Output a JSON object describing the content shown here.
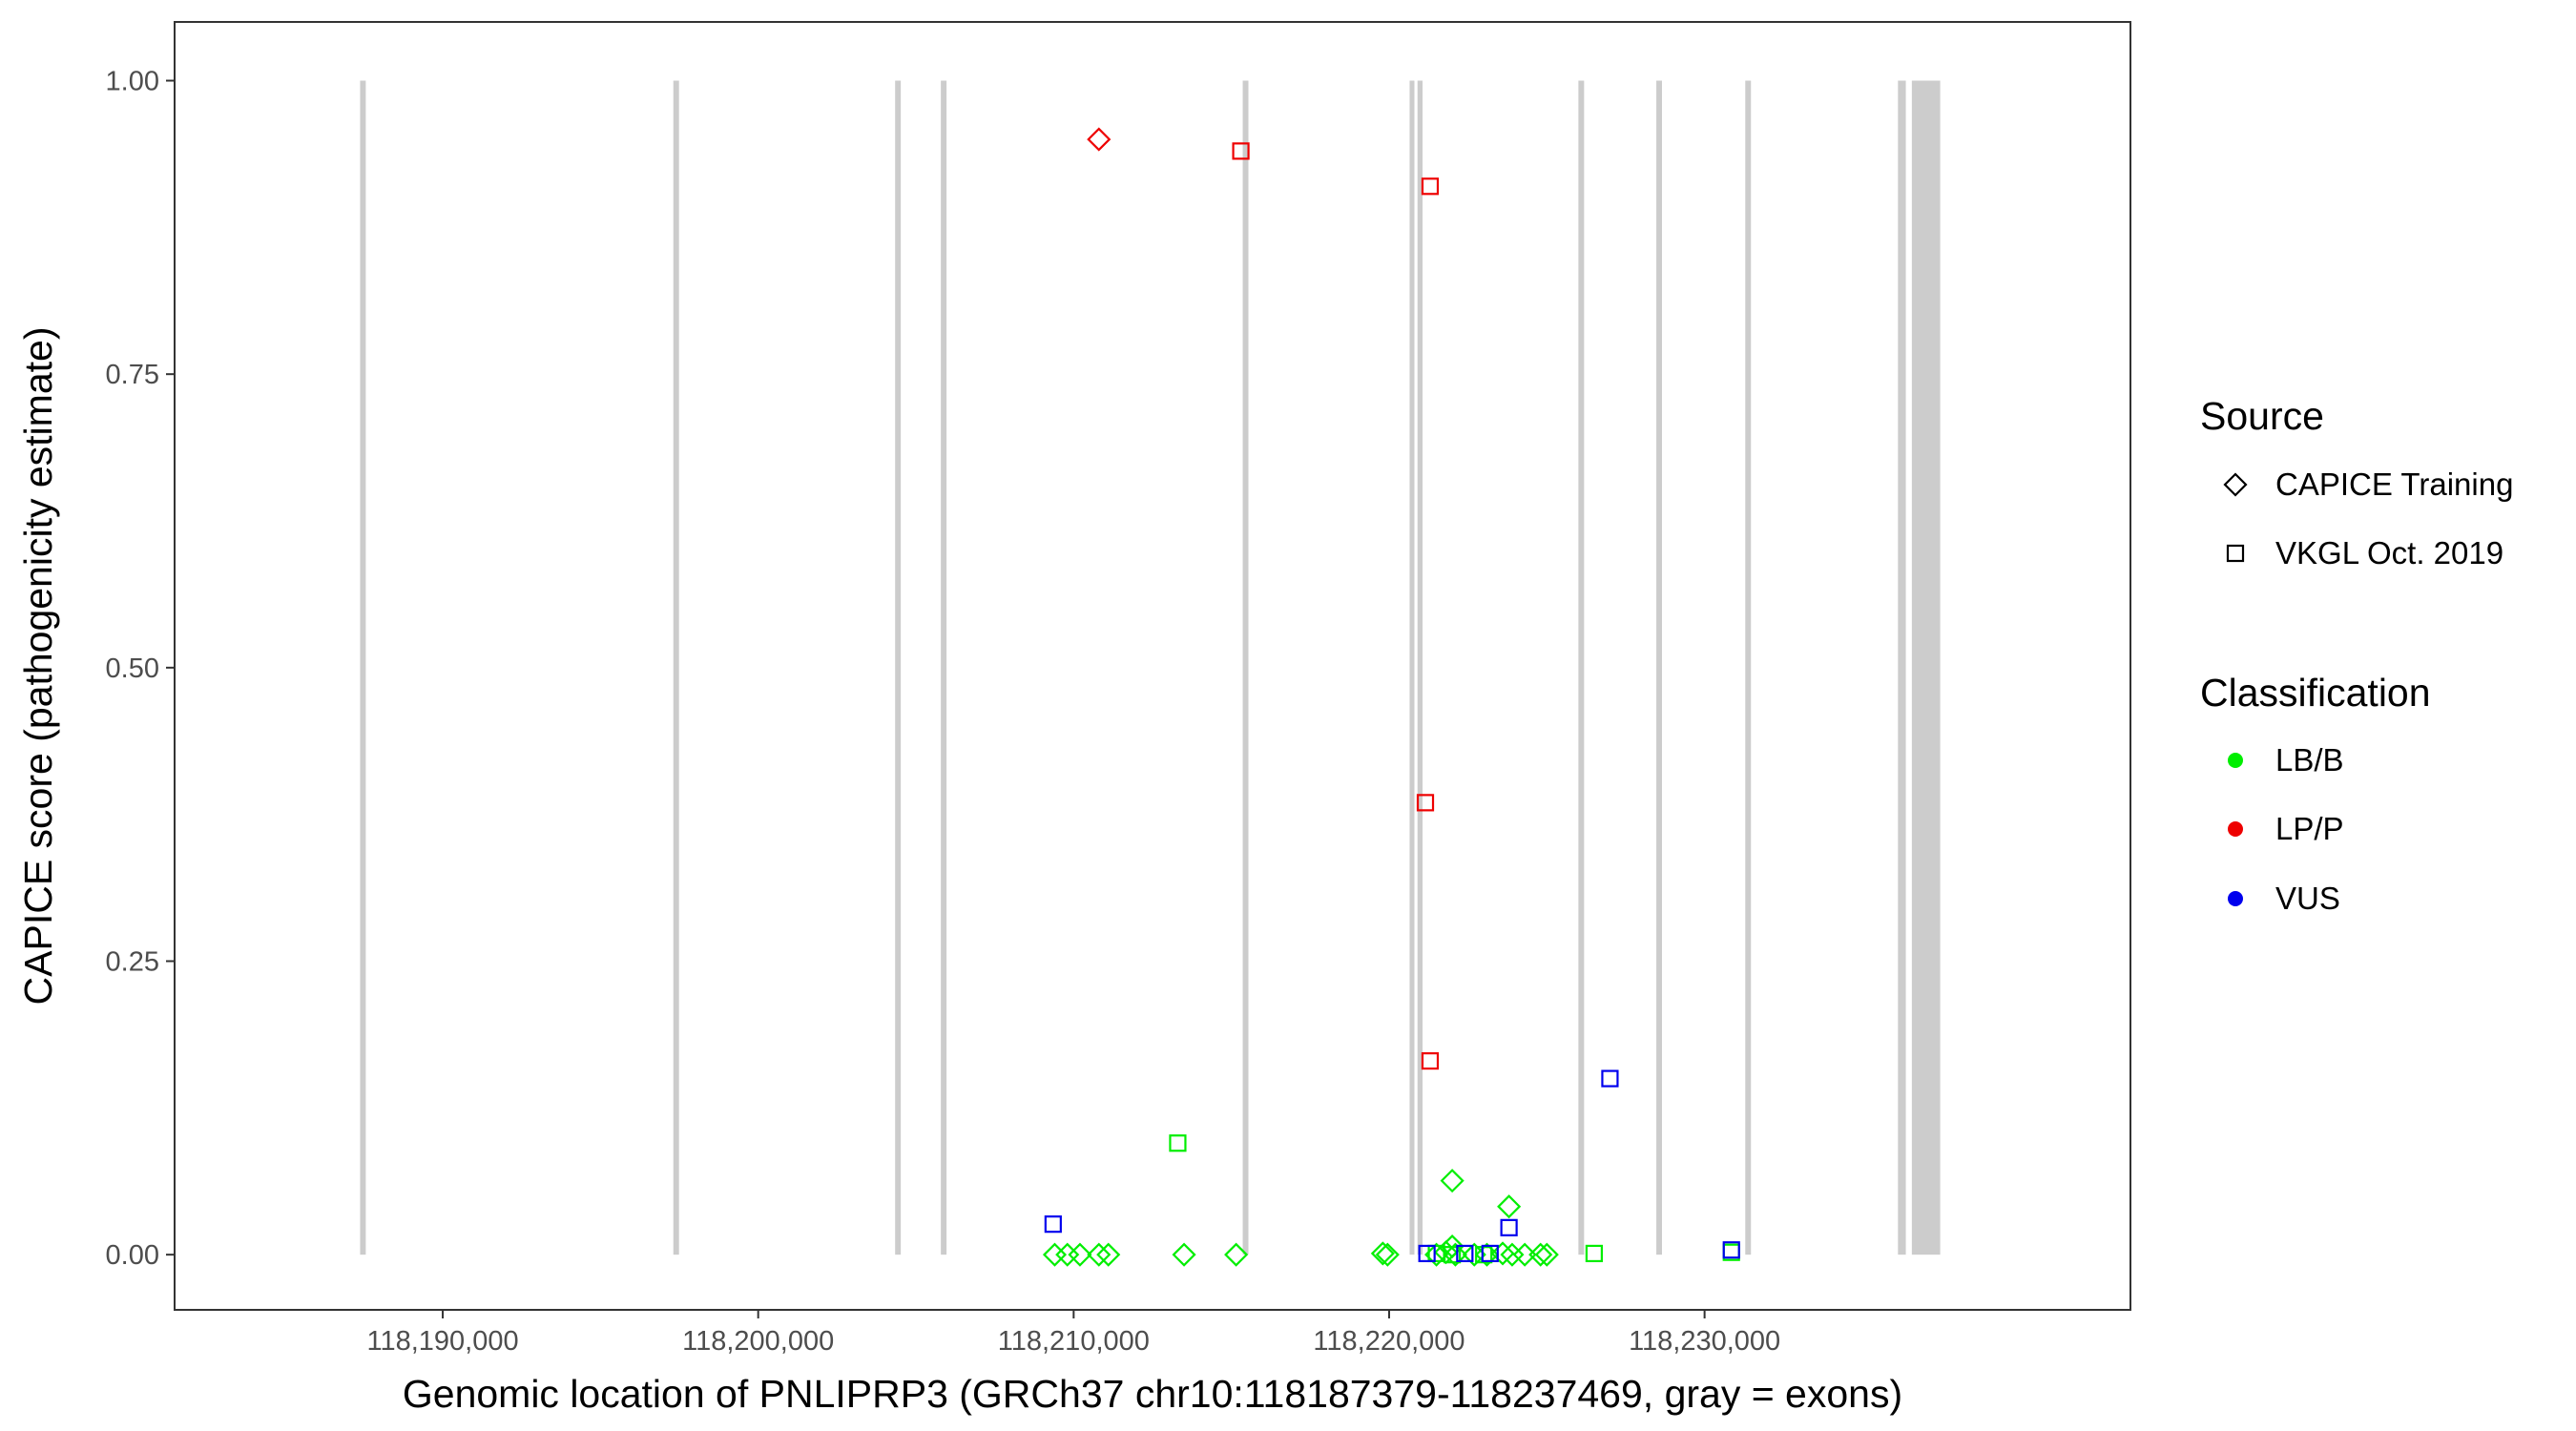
{
  "chart_data": {
    "type": "scatter",
    "xlabel": "Genomic location of PNLIPRP3 (GRCh37 chr10:118187379-118237469, gray = exons)",
    "ylabel": "CAPICE score (pathogenicity estimate)",
    "xlim": [
      118181500,
      118243500
    ],
    "ylim": [
      -0.047,
      1.05
    ],
    "x_ticks": [
      118190000,
      118200000,
      118210000,
      118220000,
      118230000
    ],
    "x_tick_labels": [
      "118,190,000",
      "118,200,000",
      "118,210,000",
      "118,220,000",
      "118,230,000"
    ],
    "y_ticks": [
      0,
      0.25,
      0.5,
      0.75,
      1
    ],
    "y_tick_labels": [
      "0.00",
      "0.25",
      "0.50",
      "0.75",
      "1.00"
    ],
    "grid": false,
    "exons": [
      {
        "start": 118187380,
        "end": 118187560
      },
      {
        "start": 118197310,
        "end": 118197490
      },
      {
        "start": 118204340,
        "end": 118204520
      },
      {
        "start": 118205790,
        "end": 118205970
      },
      {
        "start": 118215360,
        "end": 118215540
      },
      {
        "start": 118220650,
        "end": 118220800
      },
      {
        "start": 118220900,
        "end": 118221060
      },
      {
        "start": 118226000,
        "end": 118226180
      },
      {
        "start": 118228470,
        "end": 118228650
      },
      {
        "start": 118231290,
        "end": 118231470
      },
      {
        "start": 118236130,
        "end": 118236380
      },
      {
        "start": 118236570,
        "end": 118237469
      }
    ],
    "legend": {
      "position": "right",
      "source_title": "Source",
      "source_items": [
        {
          "label": "CAPICE Training",
          "shape": "diamond"
        },
        {
          "label": "VKGL Oct. 2019",
          "shape": "square"
        }
      ],
      "class_title": "Classification",
      "class_items": [
        {
          "label": "LB/B",
          "color": "#00ee00"
        },
        {
          "label": "LP/P",
          "color": "#ee0000"
        },
        {
          "label": "VUS",
          "color": "#0000ee"
        }
      ]
    },
    "colors": {
      "LB/B": "#00ee00",
      "LP/P": "#ee0000",
      "VUS": "#0000ee",
      "exon": "#cccccc"
    },
    "points": [
      {
        "x": 118210800,
        "y": 0.95,
        "source": "CAPICE Training",
        "class": "LP/P"
      },
      {
        "x": 118215300,
        "y": 0.94,
        "source": "VKGL Oct. 2019",
        "class": "LP/P"
      },
      {
        "x": 118221300,
        "y": 0.91,
        "source": "VKGL Oct. 2019",
        "class": "LP/P"
      },
      {
        "x": 118221150,
        "y": 0.385,
        "source": "VKGL Oct. 2019",
        "class": "LP/P"
      },
      {
        "x": 118221300,
        "y": 0.165,
        "source": "VKGL Oct. 2019",
        "class": "LP/P"
      },
      {
        "x": 118213300,
        "y": 0.095,
        "source": "VKGL Oct. 2019",
        "class": "LB/B"
      },
      {
        "x": 118227000,
        "y": 0.15,
        "source": "VKGL Oct. 2019",
        "class": "VUS"
      },
      {
        "x": 118209350,
        "y": 0.026,
        "source": "VKGL Oct. 2019",
        "class": "VUS"
      },
      {
        "x": 118223800,
        "y": 0.023,
        "source": "VKGL Oct. 2019",
        "class": "VUS"
      },
      {
        "x": 118221200,
        "y": 0.001,
        "source": "VKGL Oct. 2019",
        "class": "VUS"
      },
      {
        "x": 118222400,
        "y": 0.001,
        "source": "VKGL Oct. 2019",
        "class": "VUS"
      },
      {
        "x": 118223200,
        "y": 0.001,
        "source": "VKGL Oct. 2019",
        "class": "VUS"
      },
      {
        "x": 118230850,
        "y": 0.004,
        "source": "VKGL Oct. 2019",
        "class": "VUS"
      },
      {
        "x": 118226500,
        "y": 0.001,
        "source": "VKGL Oct. 2019",
        "class": "LB/B"
      },
      {
        "x": 118230850,
        "y": 0.002,
        "source": "VKGL Oct. 2019",
        "class": "LB/B"
      },
      {
        "x": 118221500,
        "y": 0.001,
        "source": "VKGL Oct. 2019",
        "class": "LB/B"
      },
      {
        "x": 118222000,
        "y": 0.0,
        "source": "VKGL Oct. 2019",
        "class": "LB/B"
      },
      {
        "x": 118223000,
        "y": 0.0,
        "source": "VKGL Oct. 2019",
        "class": "LB/B"
      },
      {
        "x": 118222000,
        "y": 0.063,
        "source": "CAPICE Training",
        "class": "LB/B"
      },
      {
        "x": 118223800,
        "y": 0.041,
        "source": "CAPICE Training",
        "class": "LB/B"
      },
      {
        "x": 118209400,
        "y": 0.0,
        "source": "CAPICE Training",
        "class": "LB/B"
      },
      {
        "x": 118209800,
        "y": 0.0,
        "source": "CAPICE Training",
        "class": "LB/B"
      },
      {
        "x": 118210200,
        "y": 0.0,
        "source": "CAPICE Training",
        "class": "LB/B"
      },
      {
        "x": 118210800,
        "y": 0.0,
        "source": "CAPICE Training",
        "class": "LB/B"
      },
      {
        "x": 118211100,
        "y": 0.0,
        "source": "CAPICE Training",
        "class": "LB/B"
      },
      {
        "x": 118213500,
        "y": 0.0,
        "source": "CAPICE Training",
        "class": "LB/B"
      },
      {
        "x": 118215150,
        "y": 0.0,
        "source": "CAPICE Training",
        "class": "LB/B"
      },
      {
        "x": 118219800,
        "y": 0.001,
        "source": "CAPICE Training",
        "class": "LB/B"
      },
      {
        "x": 118219950,
        "y": 0.0,
        "source": "CAPICE Training",
        "class": "LB/B"
      },
      {
        "x": 118221500,
        "y": 0.0,
        "source": "CAPICE Training",
        "class": "LB/B"
      },
      {
        "x": 118221800,
        "y": 0.002,
        "source": "CAPICE Training",
        "class": "LB/B"
      },
      {
        "x": 118222000,
        "y": 0.007,
        "source": "CAPICE Training",
        "class": "LB/B"
      },
      {
        "x": 118222100,
        "y": 0.0,
        "source": "CAPICE Training",
        "class": "LB/B"
      },
      {
        "x": 118222700,
        "y": 0.0,
        "source": "CAPICE Training",
        "class": "LB/B"
      },
      {
        "x": 118223100,
        "y": 0.0,
        "source": "CAPICE Training",
        "class": "LB/B"
      },
      {
        "x": 118223600,
        "y": 0.001,
        "source": "CAPICE Training",
        "class": "LB/B"
      },
      {
        "x": 118223900,
        "y": 0.0,
        "source": "CAPICE Training",
        "class": "LB/B"
      },
      {
        "x": 118224300,
        "y": 0.0,
        "source": "CAPICE Training",
        "class": "LB/B"
      },
      {
        "x": 118224800,
        "y": 0.0,
        "source": "CAPICE Training",
        "class": "LB/B"
      },
      {
        "x": 118225000,
        "y": 0.0,
        "source": "CAPICE Training",
        "class": "LB/B"
      }
    ]
  }
}
